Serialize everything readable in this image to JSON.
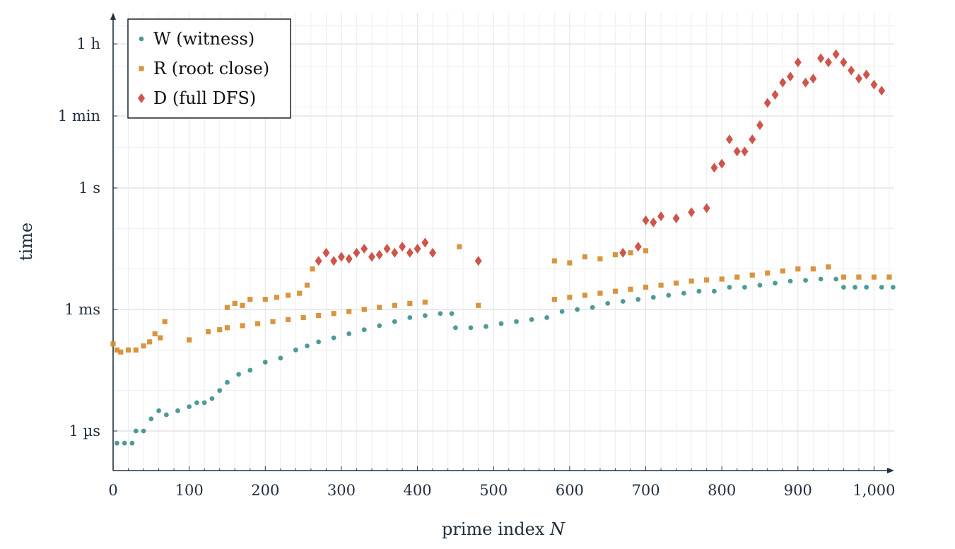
{
  "chart_data": {
    "type": "scatter",
    "xlabel": "prime index",
    "xlabel_var": "N",
    "ylabel": "time",
    "xlim": [
      0,
      1030
    ],
    "ylim_log10_seconds": [
      -6.9,
      3.9
    ],
    "y_scale": "log",
    "grid": true,
    "legend_position": "top-left",
    "x_ticks": [
      {
        "value": 0,
        "label": "0"
      },
      {
        "value": 100,
        "label": "100"
      },
      {
        "value": 200,
        "label": "200"
      },
      {
        "value": 300,
        "label": "300"
      },
      {
        "value": 400,
        "label": "400"
      },
      {
        "value": 500,
        "label": "500"
      },
      {
        "value": 600,
        "label": "600"
      },
      {
        "value": 700,
        "label": "700"
      },
      {
        "value": 800,
        "label": "800"
      },
      {
        "value": 900,
        "label": "900"
      },
      {
        "value": 1000,
        "label": "1,000"
      }
    ],
    "y_ticks": [
      {
        "seconds": 1e-06,
        "label_num": "1",
        "label_unit": "µs"
      },
      {
        "seconds": 0.001,
        "label_num": "1",
        "label_unit": "ms"
      },
      {
        "seconds": 1,
        "label_num": "1",
        "label_unit": "s"
      },
      {
        "seconds": 60,
        "label_num": "1",
        "label_unit": "min"
      },
      {
        "seconds": 3600,
        "label_num": "1",
        "label_unit": "h"
      }
    ],
    "series": [
      {
        "name": "W (witness)",
        "marker": "circle",
        "color": "#2f8a84",
        "points_log10_seconds": [
          [
            5,
            -6.3
          ],
          [
            15,
            -6.3
          ],
          [
            25,
            -6.3
          ],
          [
            30,
            -6.0
          ],
          [
            40,
            -6.0
          ],
          [
            50,
            -5.7
          ],
          [
            60,
            -5.5
          ],
          [
            70,
            -5.6
          ],
          [
            85,
            -5.5
          ],
          [
            100,
            -5.4
          ],
          [
            110,
            -5.3
          ],
          [
            120,
            -5.3
          ],
          [
            130,
            -5.2
          ],
          [
            140,
            -5.0
          ],
          [
            150,
            -4.8
          ],
          [
            165,
            -4.6
          ],
          [
            180,
            -4.5
          ],
          [
            200,
            -4.3
          ],
          [
            220,
            -4.2
          ],
          [
            240,
            -4.0
          ],
          [
            255,
            -3.9
          ],
          [
            270,
            -3.8
          ],
          [
            290,
            -3.7
          ],
          [
            310,
            -3.6
          ],
          [
            330,
            -3.5
          ],
          [
            350,
            -3.4
          ],
          [
            370,
            -3.3
          ],
          [
            390,
            -3.2
          ],
          [
            410,
            -3.15
          ],
          [
            430,
            -3.1
          ],
          [
            445,
            -3.1
          ],
          [
            450,
            -3.45
          ],
          [
            470,
            -3.45
          ],
          [
            490,
            -3.42
          ],
          [
            510,
            -3.35
          ],
          [
            530,
            -3.3
          ],
          [
            550,
            -3.25
          ],
          [
            570,
            -3.2
          ],
          [
            590,
            -3.05
          ],
          [
            610,
            -3.0
          ],
          [
            630,
            -2.95
          ],
          [
            650,
            -2.85
          ],
          [
            670,
            -2.8
          ],
          [
            690,
            -2.75
          ],
          [
            710,
            -2.7
          ],
          [
            730,
            -2.65
          ],
          [
            750,
            -2.6
          ],
          [
            770,
            -2.55
          ],
          [
            790,
            -2.55
          ],
          [
            810,
            -2.45
          ],
          [
            830,
            -2.45
          ],
          [
            850,
            -2.4
          ],
          [
            870,
            -2.35
          ],
          [
            890,
            -2.3
          ],
          [
            910,
            -2.28
          ],
          [
            930,
            -2.25
          ],
          [
            950,
            -2.25
          ],
          [
            960,
            -2.45
          ],
          [
            975,
            -2.45
          ],
          [
            990,
            -2.45
          ],
          [
            1010,
            -2.45
          ],
          [
            1025,
            -2.45
          ]
        ]
      },
      {
        "name": "R (root close)",
        "marker": "square",
        "color": "#d4892b",
        "points_log10_seconds": [
          [
            0,
            -3.85
          ],
          [
            5,
            -4.0
          ],
          [
            10,
            -4.05
          ],
          [
            20,
            -4.0
          ],
          [
            30,
            -4.0
          ],
          [
            40,
            -3.9
          ],
          [
            48,
            -3.8
          ],
          [
            55,
            -3.6
          ],
          [
            62,
            -3.7
          ],
          [
            68,
            -3.3
          ],
          [
            100,
            -3.75
          ],
          [
            125,
            -3.55
          ],
          [
            140,
            -3.5
          ],
          [
            150,
            -2.95
          ],
          [
            160,
            -2.85
          ],
          [
            170,
            -2.9
          ],
          [
            180,
            -2.75
          ],
          [
            200,
            -2.75
          ],
          [
            215,
            -2.7
          ],
          [
            230,
            -2.65
          ],
          [
            245,
            -2.6
          ],
          [
            255,
            -2.4
          ],
          [
            262,
            -2.0
          ],
          [
            150,
            -3.45
          ],
          [
            170,
            -3.4
          ],
          [
            190,
            -3.35
          ],
          [
            210,
            -3.3
          ],
          [
            230,
            -3.25
          ],
          [
            250,
            -3.2
          ],
          [
            270,
            -3.15
          ],
          [
            290,
            -3.1
          ],
          [
            310,
            -3.05
          ],
          [
            330,
            -3.0
          ],
          [
            350,
            -2.95
          ],
          [
            370,
            -2.9
          ],
          [
            390,
            -2.85
          ],
          [
            410,
            -2.82
          ],
          [
            455,
            -1.45
          ],
          [
            480,
            -2.9
          ],
          [
            580,
            -2.75
          ],
          [
            600,
            -2.7
          ],
          [
            620,
            -2.65
          ],
          [
            640,
            -2.6
          ],
          [
            660,
            -2.55
          ],
          [
            680,
            -2.5
          ],
          [
            700,
            -2.45
          ],
          [
            720,
            -2.4
          ],
          [
            740,
            -2.35
          ],
          [
            760,
            -2.3
          ],
          [
            780,
            -2.27
          ],
          [
            800,
            -2.25
          ],
          [
            820,
            -2.2
          ],
          [
            840,
            -2.15
          ],
          [
            860,
            -2.1
          ],
          [
            880,
            -2.05
          ],
          [
            900,
            -2.0
          ],
          [
            920,
            -2.0
          ],
          [
            940,
            -1.95
          ],
          [
            960,
            -2.2
          ],
          [
            980,
            -2.2
          ],
          [
            1000,
            -2.2
          ],
          [
            1020,
            -2.2
          ],
          [
            580,
            -1.8
          ],
          [
            600,
            -1.85
          ],
          [
            620,
            -1.7
          ],
          [
            640,
            -1.75
          ],
          [
            660,
            -1.65
          ],
          [
            680,
            -1.6
          ],
          [
            700,
            -1.55
          ]
        ]
      },
      {
        "name": "D (full DFS)",
        "marker": "diamond",
        "color": "#c9473d",
        "points_log10_seconds": [
          [
            270,
            -1.8
          ],
          [
            280,
            -1.6
          ],
          [
            290,
            -1.8
          ],
          [
            300,
            -1.7
          ],
          [
            310,
            -1.75
          ],
          [
            320,
            -1.6
          ],
          [
            330,
            -1.5
          ],
          [
            340,
            -1.7
          ],
          [
            350,
            -1.65
          ],
          [
            360,
            -1.5
          ],
          [
            370,
            -1.6
          ],
          [
            380,
            -1.45
          ],
          [
            390,
            -1.6
          ],
          [
            400,
            -1.5
          ],
          [
            410,
            -1.35
          ],
          [
            420,
            -1.6
          ],
          [
            480,
            -1.8
          ],
          [
            670,
            -1.6
          ],
          [
            690,
            -1.45
          ],
          [
            700,
            -0.8
          ],
          [
            710,
            -0.85
          ],
          [
            720,
            -0.7
          ],
          [
            740,
            -0.75
          ],
          [
            760,
            -0.6
          ],
          [
            780,
            -0.5
          ],
          [
            790,
            0.5
          ],
          [
            800,
            0.6
          ],
          [
            810,
            1.2
          ],
          [
            820,
            0.9
          ],
          [
            830,
            0.9
          ],
          [
            840,
            1.2
          ],
          [
            850,
            1.55
          ],
          [
            860,
            2.1
          ],
          [
            870,
            2.3
          ],
          [
            880,
            2.6
          ],
          [
            890,
            2.75
          ],
          [
            900,
            3.1
          ],
          [
            910,
            2.6
          ],
          [
            920,
            2.7
          ],
          [
            930,
            3.2
          ],
          [
            940,
            3.1
          ],
          [
            950,
            3.3
          ],
          [
            960,
            3.1
          ],
          [
            970,
            2.9
          ],
          [
            980,
            2.7
          ],
          [
            990,
            2.8
          ],
          [
            1000,
            2.55
          ],
          [
            1010,
            2.4
          ]
        ]
      }
    ]
  }
}
